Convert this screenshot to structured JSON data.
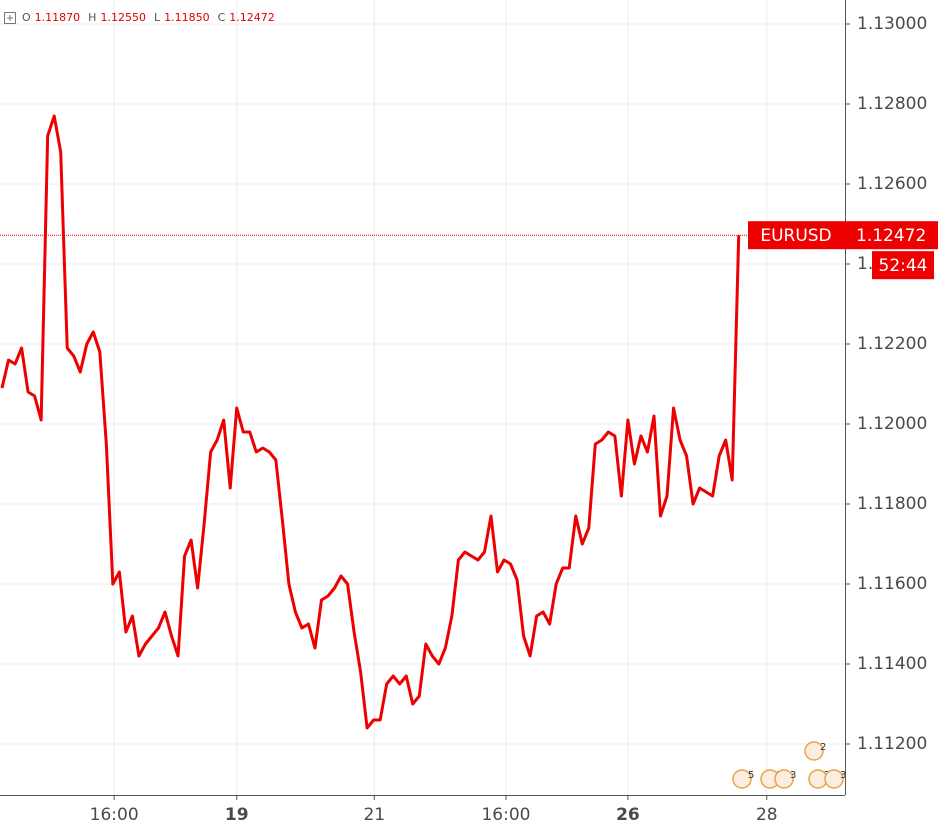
{
  "chart_data": {
    "type": "line",
    "ohlc": [
      {
        "key": "O",
        "value": "1.11870"
      },
      {
        "key": "H",
        "value": "1.12550"
      },
      {
        "key": "L",
        "value": "1.11850"
      },
      {
        "key": "C",
        "value": "1.12472"
      }
    ],
    "x": [
      0,
      1,
      2,
      3,
      4,
      5,
      6,
      7,
      8,
      9,
      10,
      11,
      12,
      13,
      14,
      15,
      16,
      17,
      18,
      19,
      20,
      21,
      22,
      23,
      24,
      25,
      26,
      27,
      28,
      29,
      30,
      31,
      32,
      33,
      34,
      35,
      36,
      37,
      38,
      39,
      40,
      41,
      42,
      43,
      44,
      45,
      46,
      47,
      48,
      49,
      50,
      51,
      52,
      53,
      54,
      55,
      56,
      57,
      58,
      59,
      60,
      61,
      62,
      63,
      64,
      65,
      66,
      67,
      68,
      69,
      70,
      71,
      72,
      73,
      74,
      75,
      76,
      77,
      78,
      79,
      80,
      81,
      82,
      83,
      84,
      85,
      86,
      87,
      88,
      89,
      90,
      91,
      92,
      93,
      94,
      95,
      96,
      97,
      98,
      99,
      100,
      101,
      102,
      103,
      104,
      105,
      106,
      107,
      108,
      109,
      110,
      111,
      112,
      113
    ],
    "series": [
      {
        "name": "EURUSD",
        "color": "#ee0000",
        "values": [
          1.1209,
          1.1216,
          1.1215,
          1.1219,
          1.1208,
          1.1207,
          1.1201,
          1.1272,
          1.1277,
          1.1268,
          1.1219,
          1.1217,
          1.1213,
          1.122,
          1.1223,
          1.1218,
          1.1195,
          1.116,
          1.1163,
          1.1148,
          1.1152,
          1.1142,
          1.1145,
          1.1147,
          1.1149,
          1.1153,
          1.1147,
          1.1142,
          1.1167,
          1.1171,
          1.1159,
          1.1175,
          1.1193,
          1.1196,
          1.1201,
          1.1184,
          1.1204,
          1.1198,
          1.1198,
          1.1193,
          1.1194,
          1.1193,
          1.1191,
          1.1176,
          1.116,
          1.1153,
          1.1149,
          1.115,
          1.1144,
          1.1156,
          1.1157,
          1.1159,
          1.1162,
          1.116,
          1.1148,
          1.1138,
          1.1124,
          1.1126,
          1.1126,
          1.1135,
          1.1137,
          1.1135,
          1.1137,
          1.113,
          1.1132,
          1.1145,
          1.1142,
          1.114,
          1.1144,
          1.1152,
          1.1166,
          1.1168,
          1.1167,
          1.1166,
          1.1168,
          1.1177,
          1.1163,
          1.1166,
          1.1165,
          1.1161,
          1.1147,
          1.1142,
          1.1152,
          1.1153,
          1.115,
          1.116,
          1.1164,
          1.1164,
          1.1177,
          1.117,
          1.1174,
          1.1195,
          1.1196,
          1.1198,
          1.1197,
          1.1182,
          1.1201,
          1.119,
          1.1197,
          1.1193,
          1.1202,
          1.1177,
          1.1182,
          1.1204,
          1.1196,
          1.1192,
          1.118,
          1.1184,
          1.1183,
          1.1182,
          1.1192,
          1.1196,
          1.1186,
          1.12472
        ]
      }
    ],
    "countdown": "52:44",
    "xlim": [
      -0.31,
      129.3
    ],
    "xticks": [
      {
        "value": 17.2,
        "label": "16:00"
      },
      {
        "value": 36.0,
        "label": "19",
        "bold": true
      },
      {
        "value": 57.1,
        "label": "21"
      },
      {
        "value": 77.3,
        "label": "16:00"
      },
      {
        "value": 96.0,
        "label": "26",
        "bold": true
      },
      {
        "value": 117.3,
        "label": "28"
      }
    ],
    "ylim": [
      1.110725,
      1.1306
    ],
    "yticks": [
      {
        "value": 1.112,
        "label": "1.11200"
      },
      {
        "value": 1.114,
        "label": "1.11400"
      },
      {
        "value": 1.116,
        "label": "1.11600"
      },
      {
        "value": 1.118,
        "label": "1.11800"
      },
      {
        "value": 1.12,
        "label": "1.12000"
      },
      {
        "value": 1.122,
        "label": "1.12200"
      },
      {
        "value": 1.124,
        "label": "1.12400"
      },
      {
        "value": 1.126,
        "label": "1.12600"
      },
      {
        "value": 1.128,
        "label": "1.12800"
      },
      {
        "value": 1.13,
        "label": "1.13000"
      }
    ],
    "grid": true,
    "events": [
      "2",
      "5",
      "3",
      "3",
      "2",
      "3"
    ]
  }
}
